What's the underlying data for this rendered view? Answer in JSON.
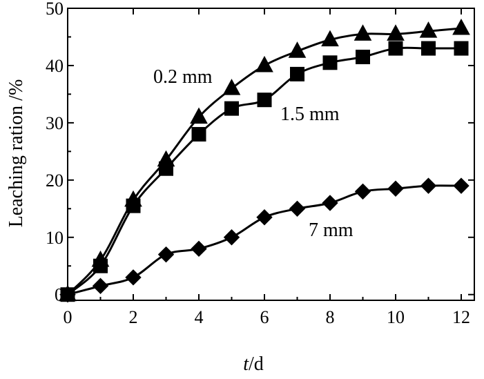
{
  "chart_data": {
    "type": "line",
    "xlabel": "t/d",
    "xlabel_italic": "t",
    "xlabel_rest": "/d",
    "ylabel": "Leaching ration /%",
    "xlim": [
      0,
      12.4
    ],
    "ylim": [
      -1,
      50
    ],
    "xticks": [
      0,
      2,
      4,
      6,
      8,
      10,
      12
    ],
    "yticks": [
      0,
      10,
      20,
      30,
      40,
      50
    ],
    "grid": false,
    "series": [
      {
        "name": "0.2 mm",
        "marker": "triangle",
        "x": [
          0,
          1,
          2,
          3,
          4,
          5,
          6,
          7,
          8,
          9,
          10,
          11,
          12
        ],
        "y": [
          0,
          6,
          16.5,
          23.5,
          31,
          36,
          40,
          42.5,
          44.5,
          45.5,
          45.5,
          46,
          46.5
        ]
      },
      {
        "name": "1.5 mm",
        "marker": "square",
        "x": [
          0,
          1,
          2,
          3,
          4,
          5,
          6,
          7,
          8,
          9,
          10,
          11,
          12
        ],
        "y": [
          0,
          5,
          15.5,
          22,
          28,
          32.5,
          34,
          38.5,
          40.5,
          41.5,
          43,
          43,
          43
        ]
      },
      {
        "name": "7 mm",
        "marker": "diamond",
        "x": [
          0,
          1,
          2,
          3,
          4,
          5,
          6,
          7,
          8,
          9,
          10,
          11,
          12
        ],
        "y": [
          0,
          1.5,
          3,
          7,
          8,
          10,
          13.5,
          15,
          16,
          18,
          18.5,
          19,
          19
        ]
      }
    ]
  }
}
